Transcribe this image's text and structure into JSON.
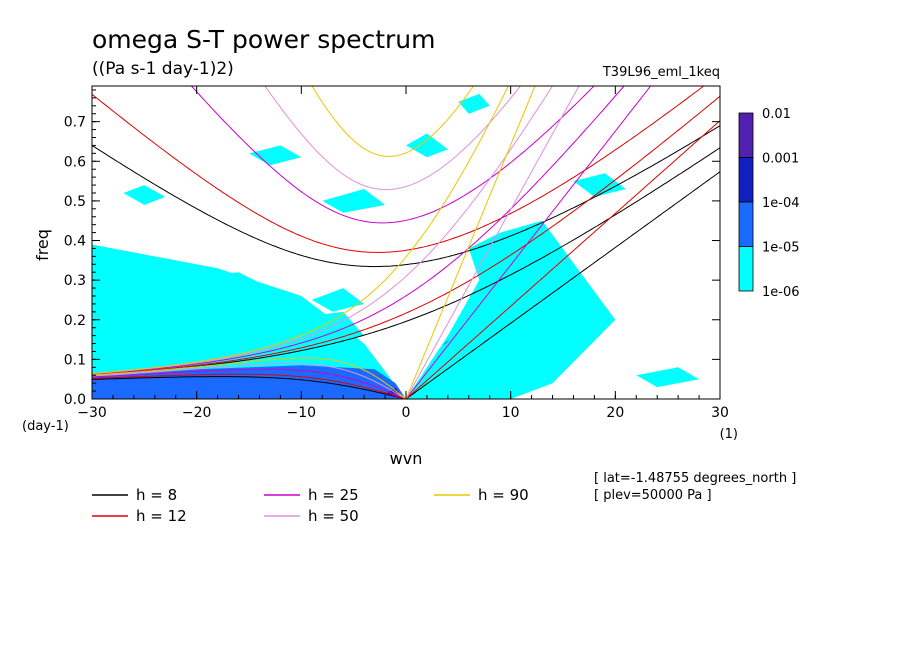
{
  "chart_data": {
    "type": "heatmap",
    "title": "omega S-T power spectrum",
    "subtitle": "((Pa s-1 day-1)2)",
    "run_label": "T39L96_eml_1keq",
    "xlabel": "wvn",
    "ylabel": "freq",
    "x_unit_label": "(1)",
    "y_unit_label": "(day-1)",
    "xlim": [
      -30,
      30
    ],
    "ylim": [
      0,
      0.79
    ],
    "xticks": [
      -30,
      -20,
      -10,
      0,
      10,
      20,
      30
    ],
    "xtick_labels": [
      "−30",
      "−20",
      "−10",
      "0",
      "10",
      "20",
      "30"
    ],
    "yticks": [
      0,
      0.1,
      0.2,
      0.3,
      0.4,
      0.5,
      0.6,
      0.7
    ],
    "ytick_labels": [
      "0.0",
      "0.1",
      "0.2",
      "0.3",
      "0.4",
      "0.5",
      "0.6",
      "0.7"
    ],
    "colorbar": {
      "levels": [
        "0.01",
        "0.001",
        "1e-04",
        "1e-05",
        "1e-06"
      ],
      "colors": [
        "#5020b0",
        "#1020c0",
        "#1a6aff",
        "#00ffff"
      ]
    },
    "contour_regions": [
      {
        "level": "1e-05",
        "points": [
          [
            -30,
            0.055
          ],
          [
            -20,
            0.075
          ],
          [
            -10,
            0.085
          ],
          [
            -3,
            0.075
          ],
          [
            -1,
            0.04
          ],
          [
            0,
            0.0
          ],
          [
            -14,
            0.0
          ],
          [
            -30,
            0.0
          ]
        ]
      },
      {
        "level": "1e-04",
        "points": [
          [
            -2,
            0.012
          ],
          [
            -1,
            0.028
          ],
          [
            -0.5,
            0.012
          ]
        ]
      },
      {
        "level": "1e-04",
        "points": [
          [
            3.5,
            0.135
          ],
          [
            4.2,
            0.152
          ],
          [
            3.8,
            0.14
          ]
        ]
      },
      {
        "level": "1e-06",
        "points": [
          [
            -30,
            0.0
          ],
          [
            -30,
            0.39
          ],
          [
            -18,
            0.33
          ],
          [
            -10,
            0.26
          ],
          [
            -4,
            0.14
          ],
          [
            0,
            0.0
          ]
        ]
      },
      {
        "level": "1e-06",
        "points": [
          [
            0,
            0.0
          ],
          [
            4,
            0.16
          ],
          [
            7,
            0.3
          ],
          [
            6,
            0.38
          ],
          [
            9,
            0.42
          ],
          [
            13,
            0.45
          ],
          [
            20,
            0.2
          ],
          [
            14,
            0.04
          ],
          [
            10,
            0.0
          ]
        ]
      },
      {
        "level": "1e-06",
        "points": [
          [
            -20,
            0.13
          ],
          [
            -12,
            0.2
          ],
          [
            -6,
            0.22
          ],
          [
            -4,
            0.16
          ],
          [
            -10,
            0.12
          ],
          [
            -18,
            0.1
          ]
        ]
      },
      {
        "level": "1e-06",
        "points": [
          [
            -22,
            0.3
          ],
          [
            -16,
            0.32
          ],
          [
            -13,
            0.28
          ],
          [
            -19,
            0.26
          ]
        ]
      },
      {
        "level": "1e-06",
        "points": [
          [
            -8,
            0.5
          ],
          [
            -4,
            0.53
          ],
          [
            -2,
            0.49
          ],
          [
            -6,
            0.47
          ]
        ]
      },
      {
        "level": "1e-06",
        "points": [
          [
            -9,
            0.25
          ],
          [
            -6,
            0.28
          ],
          [
            -4,
            0.24
          ],
          [
            -7,
            0.22
          ]
        ]
      },
      {
        "level": "1e-06",
        "points": [
          [
            5,
            0.75
          ],
          [
            7,
            0.77
          ],
          [
            8,
            0.74
          ],
          [
            6,
            0.72
          ]
        ]
      },
      {
        "level": "1e-06",
        "points": [
          [
            -27,
            0.52
          ],
          [
            -25,
            0.54
          ],
          [
            -23,
            0.51
          ],
          [
            -25,
            0.49
          ]
        ]
      },
      {
        "level": "1e-06",
        "points": [
          [
            16,
            0.55
          ],
          [
            19,
            0.57
          ],
          [
            21,
            0.53
          ],
          [
            18,
            0.51
          ]
        ]
      },
      {
        "level": "1e-06",
        "points": [
          [
            22,
            0.06
          ],
          [
            26,
            0.08
          ],
          [
            28,
            0.05
          ],
          [
            24,
            0.03
          ]
        ]
      },
      {
        "level": "1e-06",
        "points": [
          [
            -15,
            0.62
          ],
          [
            -12,
            0.64
          ],
          [
            -10,
            0.61
          ],
          [
            -13,
            0.59
          ]
        ]
      },
      {
        "level": "1e-06",
        "points": [
          [
            0,
            0.64
          ],
          [
            2,
            0.67
          ],
          [
            4,
            0.63
          ],
          [
            2,
            0.61
          ]
        ]
      },
      {
        "level": "1e-06",
        "points": [
          [
            12,
            0.18
          ],
          [
            16,
            0.2
          ],
          [
            18,
            0.16
          ],
          [
            14,
            0.14
          ]
        ]
      },
      {
        "level": "1e-06",
        "points": [
          [
            -28,
            0.16
          ],
          [
            -24,
            0.18
          ],
          [
            -22,
            0.14
          ],
          [
            -26,
            0.12
          ]
        ]
      }
    ],
    "dispersion_series": [
      {
        "label": "h = 8",
        "h": 8,
        "color": "#000000"
      },
      {
        "label": "h = 12",
        "h": 12,
        "color": "#e00000"
      },
      {
        "label": "h = 25",
        "h": 25,
        "color": "#cc00cc"
      },
      {
        "label": "h = 50",
        "h": 50,
        "color": "#e090e0"
      },
      {
        "label": "h = 90",
        "h": 90,
        "color": "#e8c800"
      }
    ],
    "annotations": [
      "[ lat=-1.48755 degrees_north ]",
      "[ plev=50000 Pa ]"
    ]
  }
}
